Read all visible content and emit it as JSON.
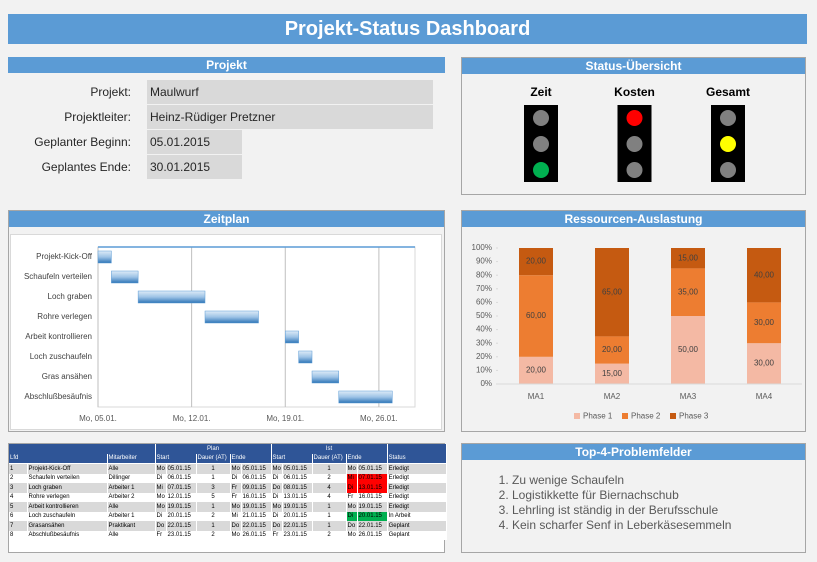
{
  "header": {
    "title": "Projekt-Status Dashboard"
  },
  "project": {
    "title": "Projekt",
    "rows": [
      {
        "label": "Projekt:",
        "value": "Maulwurf"
      },
      {
        "label": "Projektleiter:",
        "value": "Heinz-Rüdiger Pretzner"
      },
      {
        "label": "Geplanter Beginn:",
        "value": "05.01.2015"
      },
      {
        "label": "Geplantes Ende:",
        "value": "30.01.2015"
      }
    ]
  },
  "status": {
    "title": "Status-Übersicht",
    "lights": [
      {
        "label": "Zeit",
        "lit": "green"
      },
      {
        "label": "Kosten",
        "lit": "red"
      },
      {
        "label": "Gesamt",
        "lit": "yellow"
      }
    ]
  },
  "chart_data": [
    {
      "type": "gantt",
      "title": "Zeitplan",
      "categories": [
        "Projekt-Kick-Off",
        "Schaufeln verteilen",
        "Loch graben",
        "Rohre verlegen",
        "Arbeit kontrollieren",
        "Loch zuschaufeln",
        "Gras ansähen",
        "Abschlußbesäufnis"
      ],
      "start": [
        5,
        6,
        8,
        13,
        19,
        20,
        21,
        23
      ],
      "end": [
        6,
        8,
        13,
        17,
        20,
        21,
        23,
        27
      ],
      "color": "#5b9bd5",
      "xlim": [
        5,
        28.7
      ],
      "xticks": [
        {
          "value": 5,
          "label": "Mo, 05.01."
        },
        {
          "value": 12,
          "label": "Mo, 12.01."
        },
        {
          "value": 19,
          "label": "Mo, 19.01."
        },
        {
          "value": 26,
          "label": "Mo, 26.01."
        }
      ],
      "grid": true
    },
    {
      "type": "bar",
      "stacked": true,
      "title": "Ressourcen-Auslastung",
      "categories": [
        "MA1",
        "MA2",
        "MA3",
        "MA4"
      ],
      "series": [
        {
          "name": "Phase 1",
          "color": "#f4b9a4",
          "values": [
            20,
            15,
            50,
            30
          ],
          "value_labels": [
            "20,00",
            "15,00",
            "50,00",
            "30,00"
          ]
        },
        {
          "name": "Phase 2",
          "color": "#ed7d31",
          "values": [
            60,
            20,
            35,
            30
          ],
          "value_labels": [
            "60,00",
            "20,00",
            "35,00",
            "30,00"
          ]
        },
        {
          "name": "Phase 3",
          "color": "#c55a11",
          "values": [
            20,
            65,
            15,
            40
          ],
          "value_labels": [
            "20,00",
            "65,00",
            "15,00",
            "40,00"
          ]
        }
      ],
      "ylim": [
        0,
        100
      ],
      "yticks": [
        {
          "value": 0,
          "label": "0%"
        },
        {
          "value": 10,
          "label": "10%"
        },
        {
          "value": 20,
          "label": "20%"
        },
        {
          "value": 30,
          "label": "30%"
        },
        {
          "value": 40,
          "label": "40%"
        },
        {
          "value": 50,
          "label": "50%"
        },
        {
          "value": 60,
          "label": "60%"
        },
        {
          "value": 70,
          "label": "70%"
        },
        {
          "value": 80,
          "label": "80%"
        },
        {
          "value": 90,
          "label": "90%"
        },
        {
          "value": 100,
          "label": "100%"
        }
      ],
      "legend": "bottom"
    }
  ],
  "table": {
    "groups": [
      "Plan",
      "Ist"
    ],
    "columns": [
      "Lfd",
      "Mitarbeiter",
      "Start",
      "Dauer (AT)",
      "Ende",
      "Start",
      "Dauer (AT)",
      "Ende",
      "Status"
    ],
    "rows": [
      [
        "1",
        "Projekt-Kick-Off",
        "Alle",
        "Mo",
        "05.01.15",
        "1",
        "Mo",
        "05.01.15",
        "Mo",
        "05.01.15",
        "1",
        "Mo",
        "05.01.15",
        "Erledigt"
      ],
      [
        "2",
        "Schaufeln verteilen",
        "Dillinger",
        "Di",
        "06.01.15",
        "1",
        "Di",
        "06.01.15",
        "Di",
        "06.01.15",
        "2",
        "Mi",
        "07.01.15",
        "Erledigt"
      ],
      [
        "3",
        "Loch graben",
        "Arbeiter 1",
        "Mi",
        "07.01.15",
        "3",
        "Fr",
        "09.01.15",
        "Do",
        "08.01.15",
        "4",
        "Di",
        "13.01.15",
        "Erledigt"
      ],
      [
        "4",
        "Rohre verlegen",
        "Arbeiter 2",
        "Mo",
        "12.01.15",
        "5",
        "Fr",
        "16.01.15",
        "Di",
        "13.01.15",
        "4",
        "Fr",
        "16.01.15",
        "Erledigt"
      ],
      [
        "5",
        "Arbeit kontrollieren",
        "Alle",
        "Mo",
        "19.01.15",
        "1",
        "Mo",
        "19.01.15",
        "Mo",
        "19.01.15",
        "1",
        "Mo",
        "19.01.15",
        "Erledigt"
      ],
      [
        "6",
        "Loch zuschaufeln",
        "Arbeiter 1",
        "Di",
        "20.01.15",
        "2",
        "Mi",
        "21.01.15",
        "Di",
        "20.01.15",
        "1",
        "Di",
        "20.01.15",
        "In Arbeit"
      ],
      [
        "7",
        "Grasansähen",
        "Praktikant",
        "Do",
        "22.01.15",
        "1",
        "Do",
        "22.01.15",
        "Do",
        "22.01.15",
        "1",
        "Do",
        "22.01.15",
        "Geplant"
      ],
      [
        "8",
        "Abschlußbesäufnis",
        "Alle",
        "Fr",
        "23.01.15",
        "2",
        "Mo",
        "26.01.15",
        "Fr",
        "23.01.15",
        "2",
        "Mo",
        "26.01.15",
        "Geplant"
      ]
    ],
    "highlights": [
      {
        "row": 1,
        "color": "#ff0000"
      },
      {
        "row": 2,
        "color": "#ff0000"
      },
      {
        "row": 5,
        "color": "#00b050"
      }
    ]
  },
  "problems": {
    "title": "Top-4-Problemfelder",
    "items": [
      "Zu wenige Schaufeln",
      "Logistikkette für Biernachschub",
      "Lehrling ist ständig in der Berufsschule",
      "Kein scharfer Senf in Leberkäsesemmeln"
    ]
  }
}
